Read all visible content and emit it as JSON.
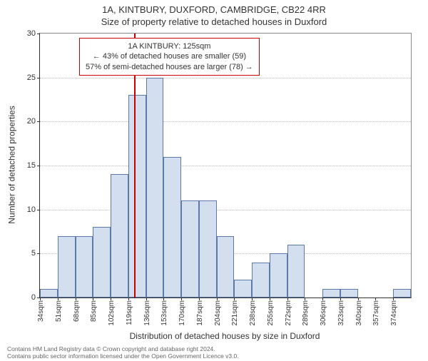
{
  "titles": {
    "line1": "1A, KINTBURY, DUXFORD, CAMBRIDGE, CB22 4RR",
    "line2": "Size of property relative to detached houses in Duxford"
  },
  "chart": {
    "type": "histogram",
    "xlabel": "Distribution of detached houses by size in Duxford",
    "ylabel": "Number of detached properties",
    "ylim": [
      0,
      30
    ],
    "yticks": [
      0,
      5,
      10,
      15,
      20,
      25,
      30
    ],
    "xtick_start": 34,
    "xtick_step": 17,
    "xtick_count": 21,
    "xtick_unit": "sqm",
    "bar_color": "#d3deee",
    "bar_border": "#5b7aa8",
    "grid_color": "#bbbbbb",
    "background_color": "#ffffff",
    "marker_color": "#cc0000",
    "marker_x_index": 5.35,
    "bars": [
      1,
      7,
      7,
      8,
      14,
      23,
      25,
      16,
      11,
      11,
      7,
      2,
      4,
      5,
      6,
      0,
      1,
      1,
      0,
      0,
      1
    ],
    "annotation": {
      "line1": "1A KINTBURY: 125sqm",
      "line2": "← 43% of detached houses are smaller (59)",
      "line3": "57% of semi-detached houses are larger (78) →",
      "box_border": "#cc0000",
      "fontsize": 11
    }
  },
  "footer": {
    "line1": "Contains HM Land Registry data © Crown copyright and database right 2024.",
    "line2": "Contains public sector information licensed under the Open Government Licence v3.0."
  }
}
